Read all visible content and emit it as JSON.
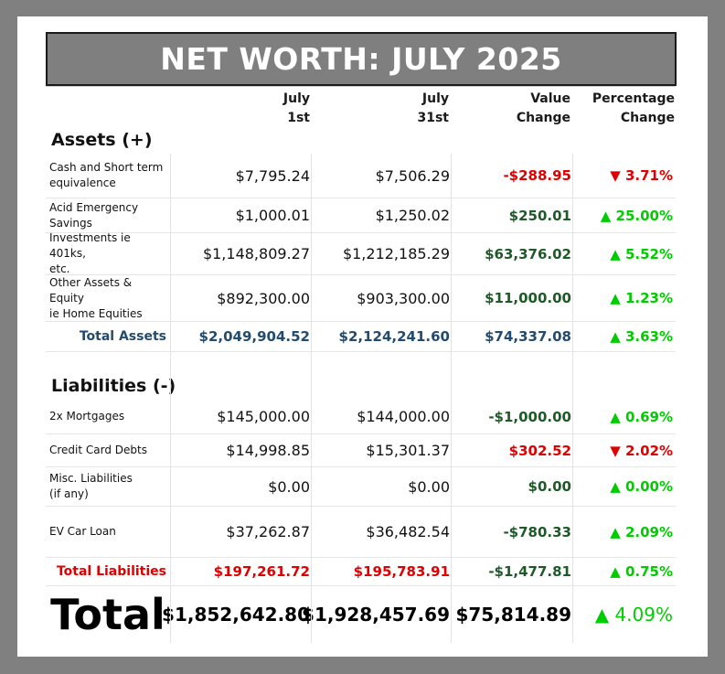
{
  "title": "NET WORTH: JULY 2025",
  "columns": {
    "start": [
      "July",
      "1st"
    ],
    "end": [
      "July",
      "31st"
    ],
    "value_change": [
      "Value",
      "Change"
    ],
    "pct_change": [
      "Percentage",
      "Change"
    ]
  },
  "assets": {
    "heading": "Assets (+)",
    "rows": [
      {
        "label": [
          "Cash and Short term",
          "equivalence"
        ],
        "start": "$7,795.24",
        "end": "$7,506.29",
        "change": "-$288.95",
        "pct": "▼ 3.71%"
      },
      {
        "label": [
          "Acid Emergency",
          "Savings"
        ],
        "start": "$1,000.01",
        "end": "$1,250.02",
        "change": "$250.01",
        "pct": "▲ 25.00%"
      },
      {
        "label": [
          "Investments ie 401ks,",
          "etc."
        ],
        "start": "$1,148,809.27",
        "end": "$1,212,185.29",
        "change": "$63,376.02",
        "pct": "▲ 5.52%"
      },
      {
        "label": [
          "Other Assets & Equity",
          "ie Home Equities"
        ],
        "start": "$892,300.00",
        "end": "$903,300.00",
        "change": "$11,000.00",
        "pct": "▲ 1.23%"
      }
    ],
    "total": {
      "label": "Total Assets",
      "start": "$2,049,904.52",
      "end": "$2,124,241.60",
      "change": "$74,337.08",
      "pct": "▲ 3.63%"
    }
  },
  "liabilities": {
    "heading": "Liabilities (-)",
    "rows": [
      {
        "label": [
          "2x Mortgages",
          ""
        ],
        "start": "$145,000.00",
        "end": "$144,000.00",
        "change": "-$1,000.00",
        "pct": "▲ 0.69%"
      },
      {
        "label": [
          "Credit Card Debts",
          ""
        ],
        "start": "$14,998.85",
        "end": "$15,301.37",
        "change": "$302.52",
        "pct": "▼ 2.02%"
      },
      {
        "label": [
          "Misc. Liabilities",
          "(if any)"
        ],
        "start": "$0.00",
        "end": "$0.00",
        "change": "$0.00",
        "pct": "▲ 0.00%"
      },
      {
        "label": [
          "EV Car Loan",
          ""
        ],
        "start": "$37,262.87",
        "end": "$36,482.54",
        "change": "-$780.33",
        "pct": "▲ 2.09%"
      }
    ],
    "total": {
      "label": "Total Liabilities",
      "start": "$197,261.72",
      "end": "$195,783.91",
      "change": "-$1,477.81",
      "pct": "▲ 0.75%"
    }
  },
  "grand_total": {
    "label": "Total",
    "start": "$1,852,642.80",
    "end": "$1,928,457.69",
    "change": "$75,814.89",
    "pct": "▲ 4.09%"
  },
  "colors": {
    "negative": "#e00000",
    "positive": "#00cc00",
    "change_positive": "#1e5a28",
    "asset_total": "#234a6f",
    "banner": "#7f7f7f",
    "frame": "#808080"
  }
}
